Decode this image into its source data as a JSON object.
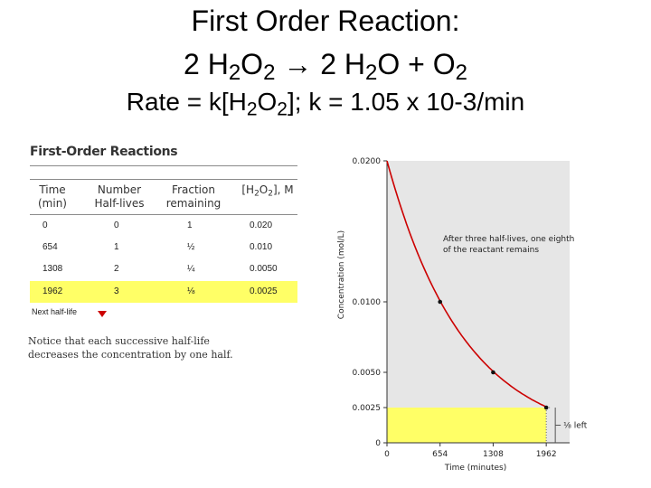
{
  "slide": {
    "title_line1": "First Order Reaction:",
    "eq_a": "2 H",
    "eq_a_sub": "2",
    "eq_b": "O",
    "eq_b_sub": "2",
    "arrow": "→",
    "eq_c": "2 H",
    "eq_c_sub": "2",
    "eq_d": "O + O",
    "eq_d_sub": "2",
    "rate_a": "Rate = k[H",
    "rate_a_sub": "2",
    "rate_b": "O",
    "rate_b_sub": "2",
    "rate_c": "];  k = 1.05 x 10-3/min"
  },
  "table": {
    "title": "First-Order Reactions",
    "headers": {
      "time": [
        "Time",
        "(min)"
      ],
      "half_lives": [
        "Number",
        "Half-lives"
      ],
      "fraction": [
        "Fraction",
        "remaining"
      ],
      "conc_a": "[H",
      "conc_a_sub": "2",
      "conc_b": "O",
      "conc_b_sub": "2",
      "conc_c": "], M"
    },
    "rows": [
      {
        "time": "0",
        "half_lives": "0",
        "fraction": "1",
        "conc": "0.020"
      },
      {
        "time": "654",
        "half_lives": "1",
        "fraction": "½",
        "conc": "0.010"
      },
      {
        "time": "1308",
        "half_lives": "2",
        "fraction": "¼",
        "conc": "0.0050"
      },
      {
        "time": "1962",
        "half_lives": "3",
        "fraction": "⅛",
        "conc": "0.0025"
      }
    ],
    "next_label": "Next half-life",
    "notice_line1": "Notice that each successive half-life",
    "notice_line2": "decreases the concentration by one half."
  },
  "chart_data": {
    "type": "line",
    "xlabel": "Time (minutes)",
    "ylabel": "Concentration (mol/L)",
    "xlim": [
      0,
      2250
    ],
    "ylim": [
      0,
      0.02
    ],
    "x_ticks": [
      "0",
      "654",
      "1308",
      "1962"
    ],
    "x_tick_values": [
      0,
      654,
      1308,
      1962
    ],
    "y_ticks": [
      "0",
      "0.0025",
      "0.0050",
      "0.0100",
      "0.0200"
    ],
    "y_tick_values": [
      0,
      0.0025,
      0.005,
      0.01,
      0.02
    ],
    "rate_constant": 0.00105,
    "initial_concentration": 0.02,
    "points": [
      {
        "x": 654,
        "y": 0.01
      },
      {
        "x": 1308,
        "y": 0.005
      },
      {
        "x": 1962,
        "y": 0.0025
      }
    ],
    "annotation_line1": "After three half-lives, one eighth",
    "annotation_line2": "of the reactant remains",
    "left_label": "⅛ left",
    "colors": {
      "plot_bg": "#e6e6e6",
      "curve": "#cc0000",
      "highlight": "#ffff66",
      "rule": "#8a8a8a"
    }
  }
}
